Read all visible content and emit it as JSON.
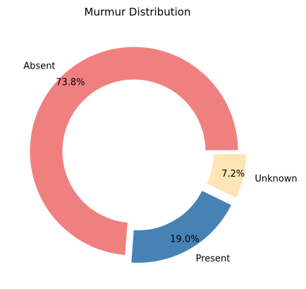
{
  "chart_data": {
    "type": "pie",
    "style": "donut",
    "title": "Murmur Distribution",
    "slices": [
      {
        "label": "Absent",
        "pct_label": "73.8%",
        "value": 73.8,
        "color": "#f08080",
        "exploded": false
      },
      {
        "label": "Present",
        "pct_label": "19.0%",
        "value": 19.0,
        "color": "#4682b4",
        "exploded": true
      },
      {
        "label": "Unknown",
        "pct_label": "7.2%",
        "value": 7.2,
        "color": "#ffe4b5",
        "exploded": true
      }
    ],
    "start_angle_deg": 0,
    "direction": "counterclockwise",
    "legend": "none"
  }
}
